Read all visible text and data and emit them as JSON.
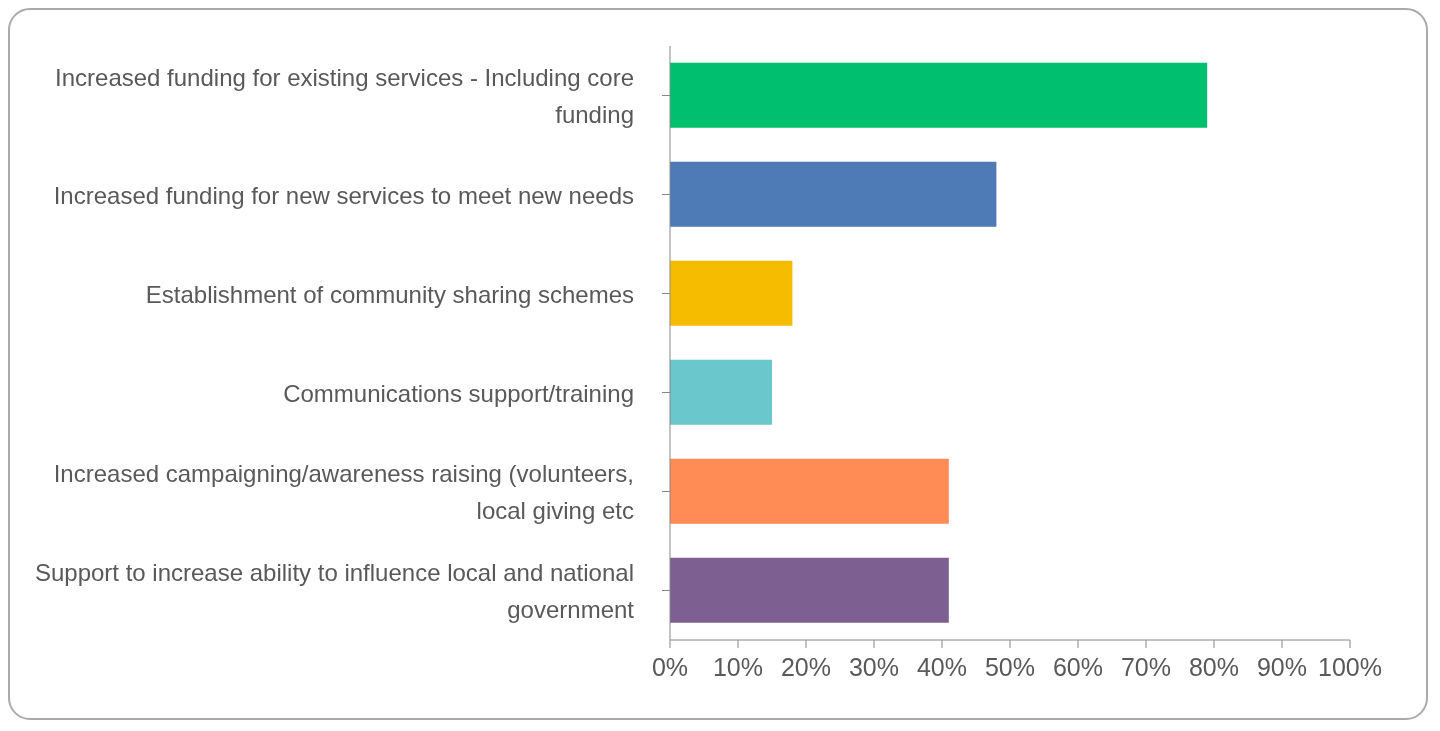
{
  "chart_data": {
    "type": "bar",
    "orientation": "horizontal",
    "categories": [
      "Increased funding for existing services - Including core funding",
      "Increased funding for new services to meet new needs",
      "Establishment of community sharing schemes",
      "Communications support/training",
      "Increased campaigning/awareness raising (volunteers, local giving etc",
      "Support to increase ability to influence local and national government"
    ],
    "values": [
      79,
      48,
      18,
      15,
      41,
      41
    ],
    "colors": [
      "#00bf6f",
      "#4e7ab5",
      "#f6bd00",
      "#6ac7cc",
      "#ff8c55",
      "#7d5f91"
    ],
    "xlim": [
      0,
      100
    ],
    "xticks": [
      {
        "value": 0,
        "label": "0%"
      },
      {
        "value": 10,
        "label": "10%"
      },
      {
        "value": 20,
        "label": "20%"
      },
      {
        "value": 30,
        "label": "30%"
      },
      {
        "value": 40,
        "label": "40%"
      },
      {
        "value": 50,
        "label": "50%"
      },
      {
        "value": 60,
        "label": "60%"
      },
      {
        "value": 70,
        "label": "70%"
      },
      {
        "value": 80,
        "label": "80%"
      },
      {
        "value": 90,
        "label": "90%"
      },
      {
        "value": 100,
        "label": "100%"
      }
    ],
    "grid": false
  }
}
